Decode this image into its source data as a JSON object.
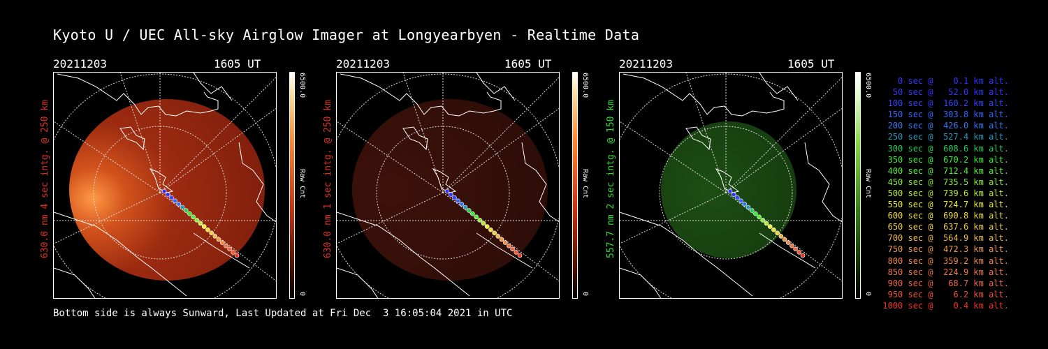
{
  "title": "Kyoto U / UEC All-sky Airglow Imager at Longyearbyen - Realtime Data",
  "panels": [
    {
      "date": "20211203",
      "time": "1605 UT",
      "ylabel": "630.0 nm 4 sec intg. @ 250 km",
      "color": "#dd3322",
      "cbar_max": "6500.0",
      "cbar_min": "0",
      "cbar_unit": "Raw Cnt",
      "glow": "red-bright"
    },
    {
      "date": "20211203",
      "time": "1605 UT",
      "ylabel": "630.0 nm 1 sec intg. @ 250 km",
      "color": "#dd3322",
      "cbar_max": "6500.0",
      "cbar_min": "0",
      "cbar_unit": "Raw Cnt",
      "glow": "red-dim"
    },
    {
      "date": "20211203",
      "time": "1605 UT",
      "ylabel": "557.7 nm 2 sec intg. @ 150 km",
      "color": "#33dd33",
      "cbar_max": "6500.0",
      "cbar_min": "0",
      "cbar_unit": "Raw Cnt",
      "glow": "green"
    }
  ],
  "legend": [
    {
      "text": "   0 sec @    0.1 km alt.",
      "color": "#3333ff"
    },
    {
      "text": "  50 sec @   52.0 km alt.",
      "color": "#3333ff"
    },
    {
      "text": " 100 sec @  160.2 km alt.",
      "color": "#3344ff"
    },
    {
      "text": " 150 sec @  303.8 km alt.",
      "color": "#3366ff"
    },
    {
      "text": " 200 sec @  426.0 km alt.",
      "color": "#3377ee"
    },
    {
      "text": " 250 sec @  527.4 km alt.",
      "color": "#2299bb"
    },
    {
      "text": " 300 sec @  608.6 km alt.",
      "color": "#22cc55"
    },
    {
      "text": " 350 sec @  670.2 km alt.",
      "color": "#33ee33"
    },
    {
      "text": " 400 sec @  712.4 km alt.",
      "color": "#55ee33"
    },
    {
      "text": " 450 sec @  735.5 km alt.",
      "color": "#88ee33"
    },
    {
      "text": " 500 sec @  739.6 km alt.",
      "color": "#bbee33"
    },
    {
      "text": " 550 sec @  724.7 km alt.",
      "color": "#eeee33"
    },
    {
      "text": " 600 sec @  690.8 km alt.",
      "color": "#eedd33"
    },
    {
      "text": " 650 sec @  637.6 km alt.",
      "color": "#eecc44"
    },
    {
      "text": " 700 sec @  564.9 km alt.",
      "color": "#eebb44"
    },
    {
      "text": " 750 sec @  472.3 km alt.",
      "color": "#ee9944"
    },
    {
      "text": " 800 sec @  359.2 km alt.",
      "color": "#ee8844"
    },
    {
      "text": " 850 sec @  224.9 km alt.",
      "color": "#ee7744"
    },
    {
      "text": " 900 sec @   68.7 km alt.",
      "color": "#ee6644"
    },
    {
      "text": " 950 sec @    6.2 km alt.",
      "color": "#ee5533"
    },
    {
      "text": "1000 sec @    0.4 km alt.",
      "color": "#ee3322"
    }
  ],
  "footer": "Bottom side is always Sunward, Last Updated at Fri Dec  3 16:05:04 2021 in UTC"
}
